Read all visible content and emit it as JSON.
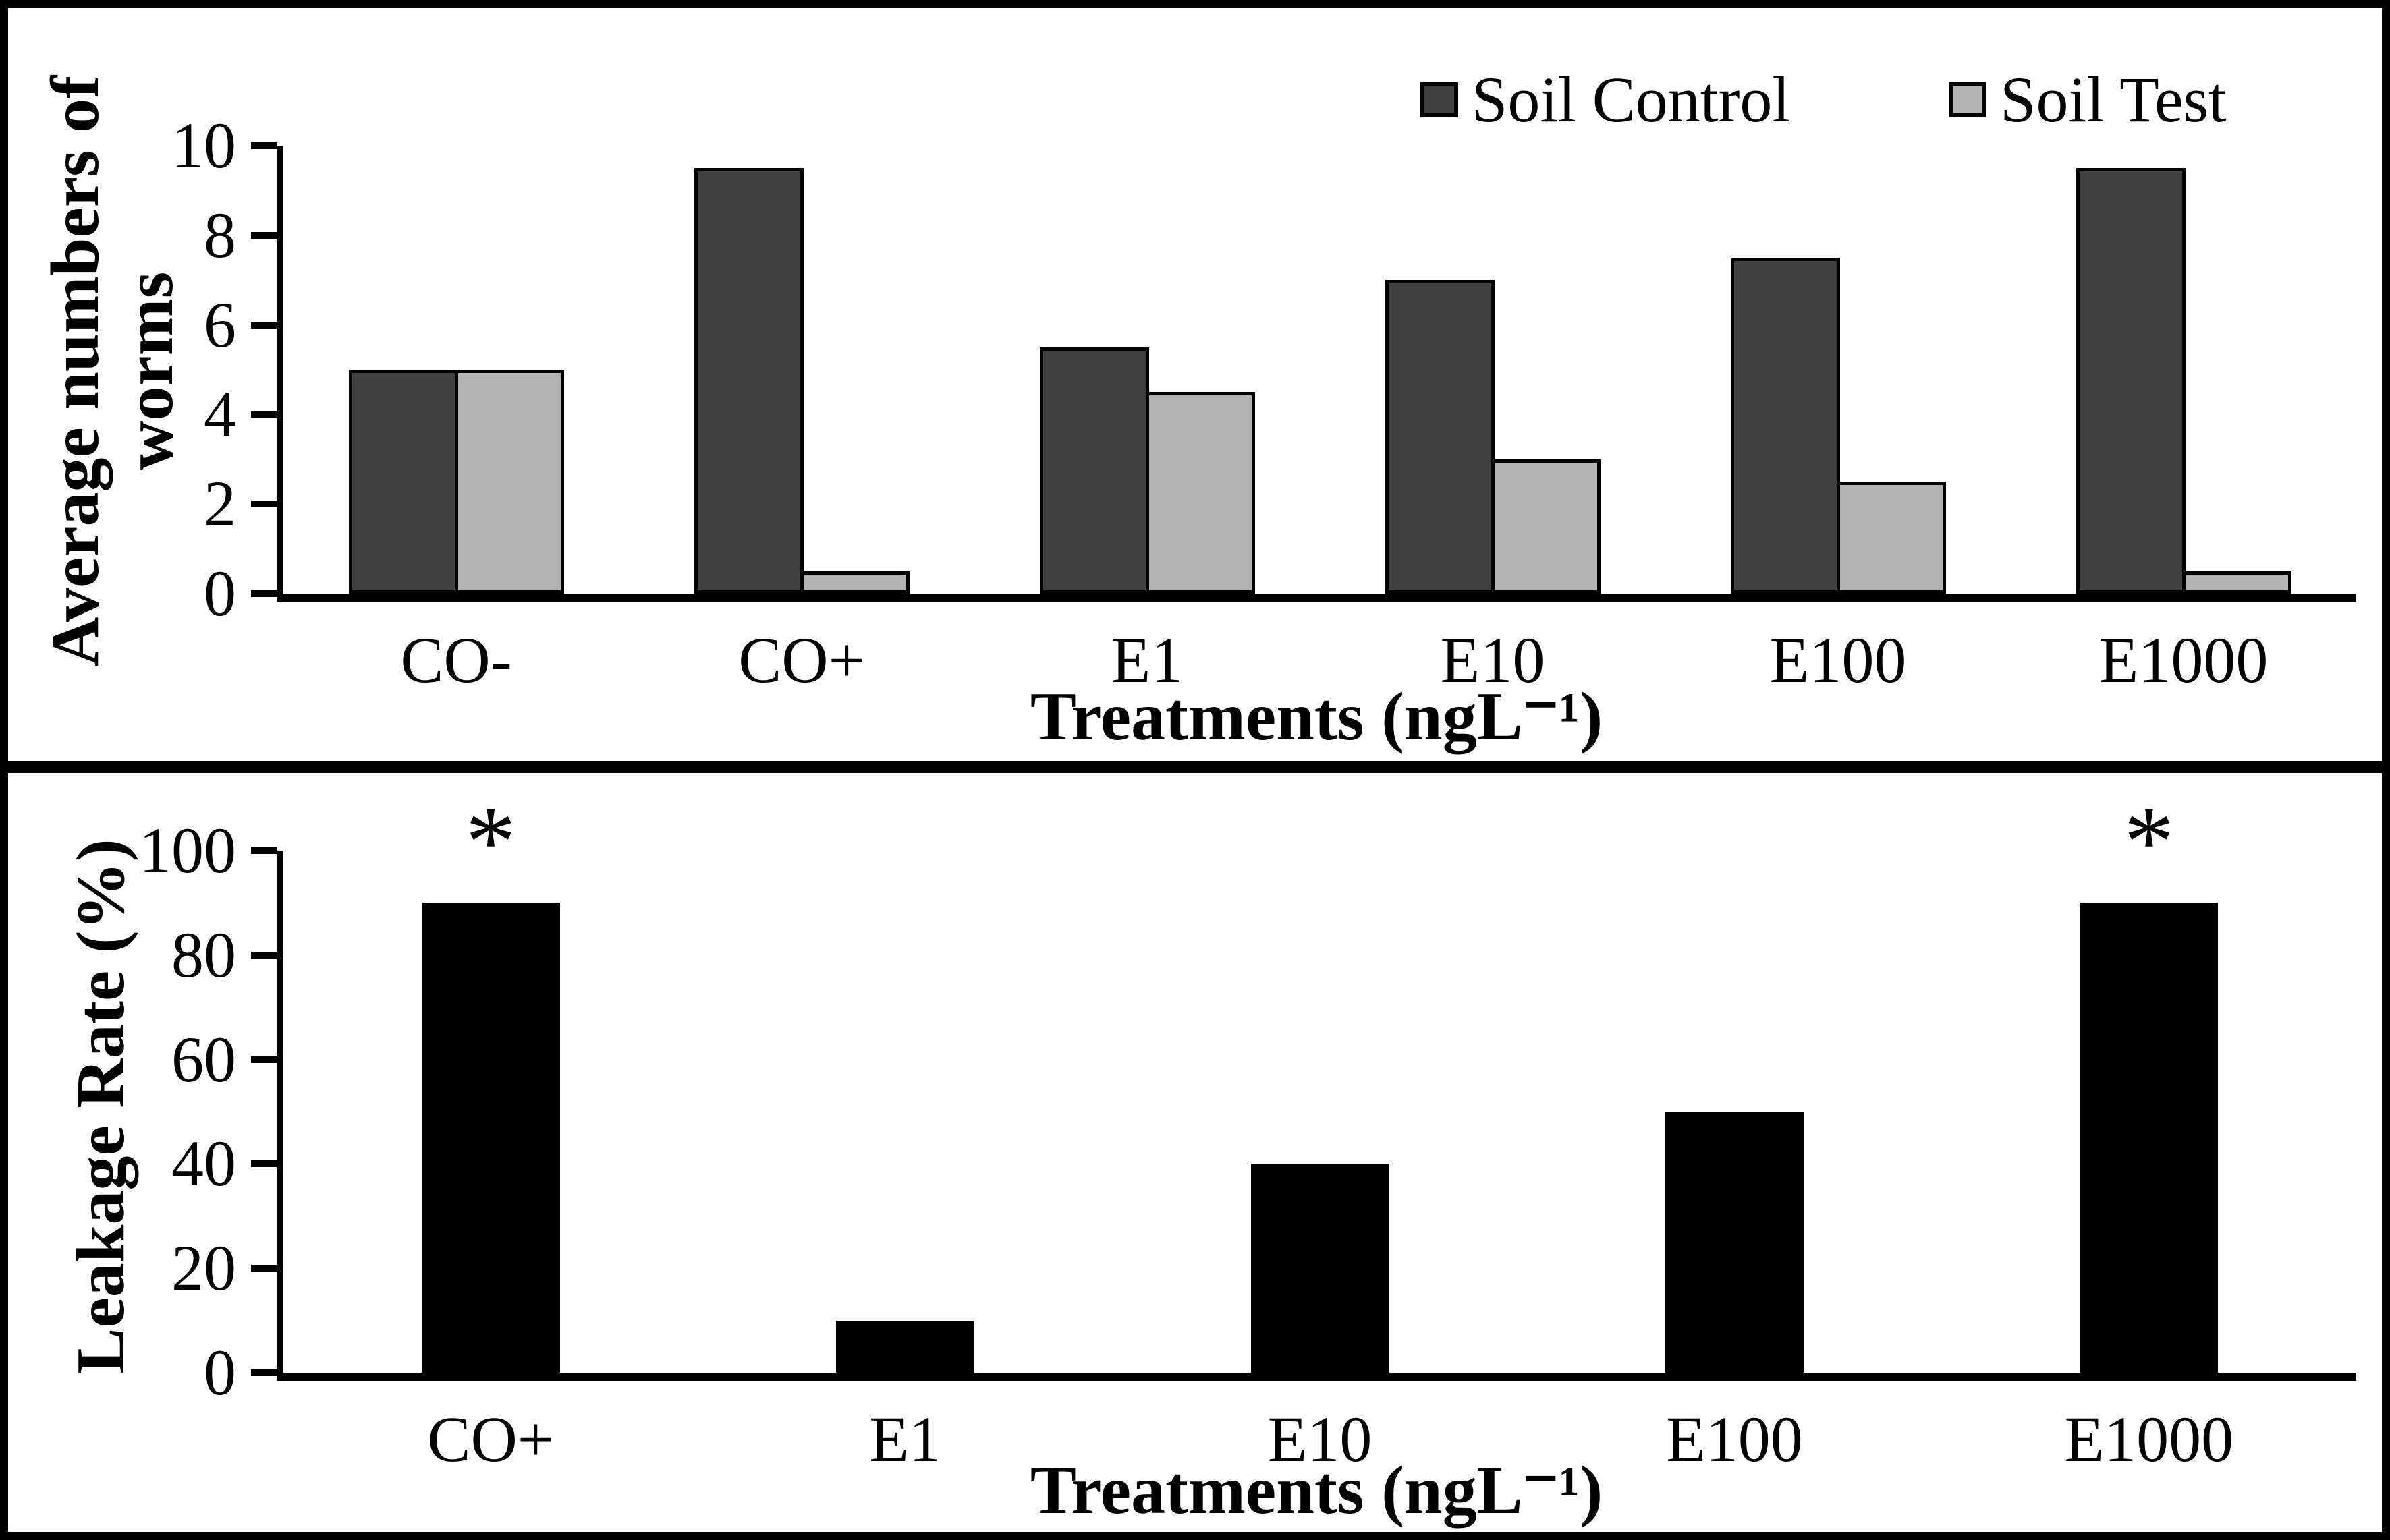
{
  "figure": {
    "background": "#ffffff",
    "border_color": "#000000"
  },
  "legend": {
    "position": "top-right",
    "items": [
      {
        "label": "Soil Control",
        "color": "#404040"
      },
      {
        "label": "Soil Test",
        "color": "#b3b3b3"
      }
    ]
  },
  "chart_data": [
    {
      "type": "bar",
      "categories": [
        "CO-",
        "CO+",
        "E1",
        "E10",
        "E100",
        "E1000"
      ],
      "series": [
        {
          "name": "Soil Control",
          "values": [
            5,
            9.5,
            5.5,
            7,
            7.5,
            9.5
          ],
          "color": "#404040"
        },
        {
          "name": "Soil Test",
          "values": [
            5,
            0.5,
            4.5,
            3,
            2.5,
            0.5
          ],
          "color": "#b3b3b3"
        }
      ],
      "xlabel": "Treatments (ngL⁻¹)",
      "ylabel": "Average numbers of worms",
      "ylabel_lines": [
        "Average numbers of",
        "worms"
      ],
      "ylim": [
        0,
        10
      ],
      "yticks": [
        0,
        2,
        4,
        6,
        8,
        10
      ],
      "grid": false,
      "legend_position": "top-right",
      "bar_outline": "#000000"
    },
    {
      "type": "bar",
      "categories": [
        "CO+",
        "E1",
        "E10",
        "E100",
        "E1000"
      ],
      "series": [
        {
          "name": "Leakage Rate",
          "values": [
            90,
            10,
            40,
            50,
            90
          ],
          "color": "#000000"
        }
      ],
      "xlabel": "Treatments (ngL⁻¹)",
      "ylabel": "Leakage Rate (%)",
      "ylabel_lines": [
        "Leakage Rate (%)"
      ],
      "ylim": [
        0,
        100
      ],
      "yticks": [
        0,
        20,
        40,
        60,
        80,
        100
      ],
      "grid": false,
      "annotations": [
        {
          "category": "CO+",
          "text": "*"
        },
        {
          "category": "E1000",
          "text": "*"
        }
      ],
      "bar_outline": "#000000"
    }
  ]
}
